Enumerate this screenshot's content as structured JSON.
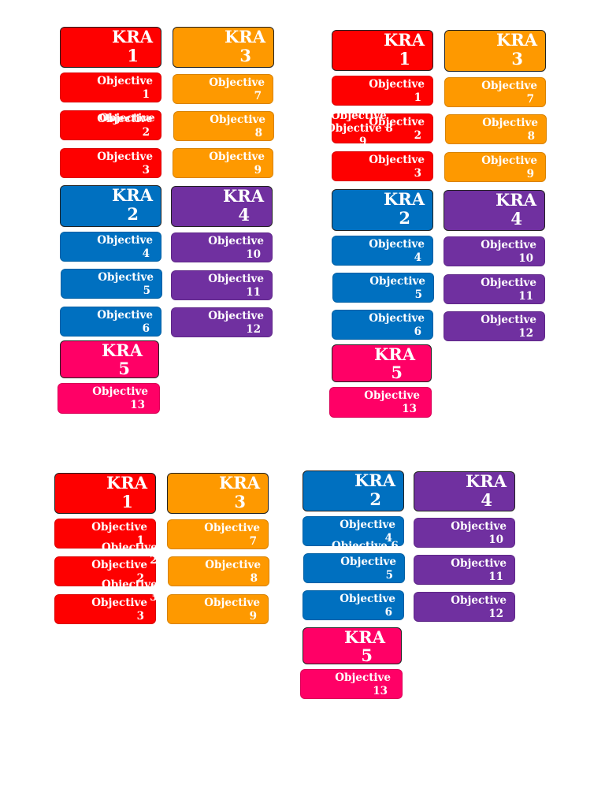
{
  "kra_word": "KRA",
  "objective_word": "Objective",
  "colors": {
    "red": "#fe0000",
    "orange": "#fe9900",
    "blue": "#0070c0",
    "purple": "#7030a0",
    "pink": "#ff0066"
  },
  "kra_numbers": [
    "1",
    "2",
    "3",
    "4",
    "5"
  ],
  "objective_numbers": [
    "1",
    "2",
    "3",
    "4",
    "5",
    "6",
    "7",
    "8",
    "9",
    "10",
    "11",
    "12",
    "13"
  ]
}
